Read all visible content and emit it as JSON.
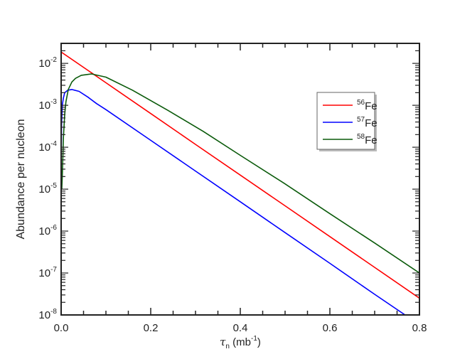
{
  "chart_data": {
    "type": "line",
    "title": "",
    "xlabel": {
      "symbol": "τ",
      "sub": "n",
      "unit_open": " (mb",
      "unit_sup": "-1",
      "unit_close": ")"
    },
    "ylabel": "Abundance per nucleon",
    "xlim": [
      0,
      0.8
    ],
    "ylim": [
      1e-08,
      0.03
    ],
    "yscale": "log",
    "grid": false,
    "legend_placement": "upper-right",
    "x_ticks": [
      "0.0",
      "0.2",
      "0.4",
      "0.6",
      "0.8"
    ],
    "y_ticks": [
      {
        "base": "10",
        "exp": "-8"
      },
      {
        "base": "10",
        "exp": "-7"
      },
      {
        "base": "10",
        "exp": "-6"
      },
      {
        "base": "10",
        "exp": "-5"
      },
      {
        "base": "10",
        "exp": "-4"
      },
      {
        "base": "10",
        "exp": "-3"
      },
      {
        "base": "10",
        "exp": "-2"
      }
    ],
    "series": [
      {
        "name": "56Fe",
        "mass": "56",
        "element": "Fe",
        "color": "#ff0000",
        "points": [
          [
            0,
            0.0187
          ],
          [
            0.1,
            0.00345
          ],
          [
            0.2,
            0.000636
          ],
          [
            0.3,
            0.000117
          ],
          [
            0.4,
            2.16e-05
          ],
          [
            0.5,
            4e-06
          ],
          [
            0.6,
            7.4e-07
          ],
          [
            0.7,
            1.36e-07
          ],
          [
            0.8,
            2.5e-08
          ]
        ]
      },
      {
        "name": "57Fe",
        "mass": "57",
        "element": "Fe",
        "color": "#0000ff",
        "points": [
          [
            0.0004,
            0.0001
          ],
          [
            0.001,
            0.00035
          ],
          [
            0.0026,
            0.001
          ],
          [
            0.005,
            0.0015
          ],
          [
            0.008,
            0.002
          ],
          [
            0.015,
            0.0023
          ],
          [
            0.024,
            0.00238
          ],
          [
            0.04,
            0.00215
          ],
          [
            0.06,
            0.00156
          ],
          [
            0.079,
            0.0011
          ],
          [
            0.1,
            0.00079
          ],
          [
            0.2,
            0.000146
          ],
          [
            0.3,
            2.7e-05
          ],
          [
            0.4,
            5e-06
          ],
          [
            0.5,
            9.2e-07
          ],
          [
            0.6,
            1.7e-07
          ],
          [
            0.7,
            3.1e-08
          ],
          [
            0.768,
            1e-08
          ]
        ]
      },
      {
        "name": "58Fe",
        "mass": "58",
        "element": "Fe",
        "color": "#0a5a0a",
        "points": [
          [
            0.0015,
            1e-05
          ],
          [
            0.0026,
            2e-05
          ],
          [
            0.005,
            0.00017
          ],
          [
            0.008,
            0.0006
          ],
          [
            0.0106,
            0.0012
          ],
          [
            0.016,
            0.0024
          ],
          [
            0.024,
            0.0036
          ],
          [
            0.032,
            0.0044
          ],
          [
            0.045,
            0.0052
          ],
          [
            0.068,
            0.0056
          ],
          [
            0.1,
            0.0047
          ],
          [
            0.159,
            0.0023
          ],
          [
            0.238,
            0.00076
          ],
          [
            0.317,
            0.00024
          ],
          [
            0.4,
            6.4e-05
          ],
          [
            0.498,
            1.38e-05
          ],
          [
            0.6,
            2.6e-06
          ],
          [
            0.7,
            5.2e-07
          ],
          [
            0.8,
            1e-07
          ]
        ]
      }
    ]
  }
}
